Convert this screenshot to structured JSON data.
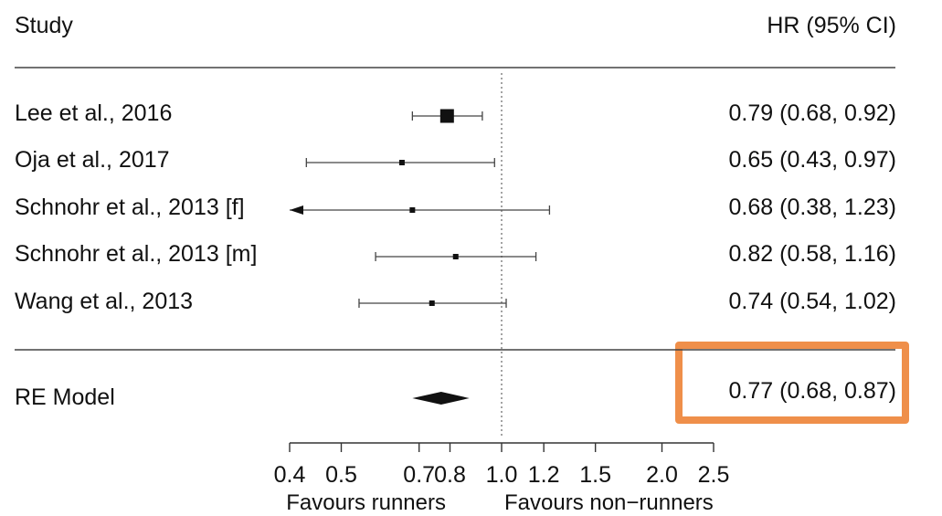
{
  "header": {
    "study_label": "Study",
    "estimate_label": "HR (95% CI)"
  },
  "colors": {
    "highlight": "#ef8f4a",
    "ink": "#111111"
  },
  "chart_data": {
    "type": "forest",
    "scale": "log",
    "xlim": [
      0.4,
      2.5
    ],
    "ticks": [
      0.4,
      0.5,
      0.7,
      0.8,
      1.0,
      1.2,
      1.5,
      2.0,
      2.5
    ],
    "tick_labels": [
      "0.4",
      "0.5",
      "0.7",
      "0.8",
      "1.0",
      "1.2",
      "1.5",
      "2.0",
      "2.5"
    ],
    "reference_line": 1.0,
    "left_caption": "Favours runners",
    "right_caption": "Favours non−runners",
    "studies": [
      {
        "name": "Lee et al., 2016",
        "hr": 0.79,
        "lo": 0.68,
        "hi": 0.92,
        "label": "0.79 (0.68, 0.92)",
        "weight": "large"
      },
      {
        "name": "Oja et al., 2017",
        "hr": 0.65,
        "lo": 0.43,
        "hi": 0.97,
        "label": "0.65 (0.43, 0.97)",
        "weight": "small"
      },
      {
        "name": "Schnohr et al., 2013 [f]",
        "hr": 0.68,
        "lo": 0.38,
        "hi": 1.23,
        "label": "0.68 (0.38, 1.23)",
        "weight": "small"
      },
      {
        "name": "Schnohr et al., 2013 [m]",
        "hr": 0.82,
        "lo": 0.58,
        "hi": 1.16,
        "label": "0.82 (0.58, 1.16)",
        "weight": "small"
      },
      {
        "name": "Wang et al., 2013",
        "hr": 0.74,
        "lo": 0.54,
        "hi": 1.02,
        "label": "0.74 (0.54, 1.02)",
        "weight": "small"
      }
    ],
    "summary": {
      "name": "RE Model",
      "hr": 0.77,
      "lo": 0.68,
      "hi": 0.87,
      "label": "0.77 (0.68, 0.87)",
      "highlighted": true
    }
  }
}
